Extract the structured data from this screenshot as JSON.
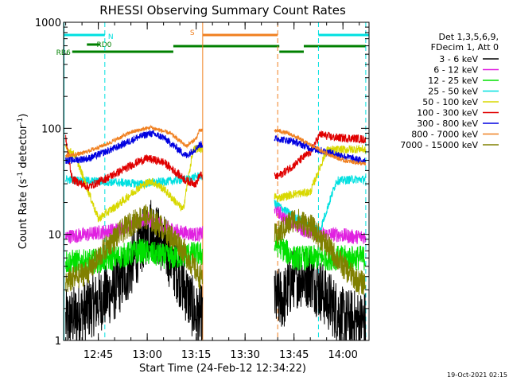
{
  "chart_data": {
    "type": "line",
    "title": "RHESSI Observing Summary Count Rates",
    "xlabel": "Start Time (24-Feb-12 12:34:22)",
    "ylabel": "Count Rate (s⁻¹ detector⁻¹)",
    "ylabel_parts": {
      "base": "Count Rate (s",
      "exp1": "-1",
      "mid": " detector",
      "exp2": "-1",
      "end": ")"
    },
    "x_axis": {
      "unit": "time",
      "range": [
        "12:34:22",
        "14:08:00"
      ],
      "ticks": [
        "12:45",
        "13:00",
        "13:15",
        "13:30",
        "13:45",
        "14:00"
      ]
    },
    "y_axis": {
      "scale": "log",
      "range": [
        1,
        1000
      ],
      "ticks": [
        "1",
        "10",
        "100",
        "1000"
      ]
    },
    "legend": {
      "placement": "right",
      "header": [
        "Det 1,3,5,6,9,",
        "FDecim 1, Att 0"
      ],
      "entries": [
        {
          "label": "3 - 6 keV",
          "color": "#000000"
        },
        {
          "label": "6 - 12 keV",
          "color": "#e020e0"
        },
        {
          "label": "12 - 25 keV",
          "color": "#00e000"
        },
        {
          "label": "25 - 50 keV",
          "color": "#00e0e0"
        },
        {
          "label": "50 - 100 keV",
          "color": "#d8d800"
        },
        {
          "label": "100 - 300 keV",
          "color": "#e00000"
        },
        {
          "label": "300 - 800 keV",
          "color": "#0000e0"
        },
        {
          "label": "800 - 7000 keV",
          "color": "#f08020"
        },
        {
          "label": "7000 - 15000 keV",
          "color": "#808000"
        }
      ]
    },
    "flags": [
      {
        "label": "N",
        "color": "#00e0e0",
        "level": 1
      },
      {
        "label": "S",
        "color": "#f08020",
        "level": 1
      },
      {
        "label": "RD0",
        "color": "#008000",
        "level": 2
      },
      {
        "label": "RB6",
        "color": "#008000",
        "level": 3
      }
    ],
    "gaps": [
      {
        "from": "13:17",
        "to": "13:39",
        "reason": "no data"
      }
    ],
    "series": [
      {
        "band": "3 - 6 keV",
        "color": "#000000",
        "x": [
          "12:35",
          "12:42",
          "12:50",
          "12:55",
          "12:58",
          "13:01",
          "13:05",
          "13:10",
          "13:15",
          "13:16",
          "13:42",
          "13:45",
          "13:50",
          "13:55",
          "14:00",
          "14:05",
          "14:07"
        ],
        "y": [
          1.5,
          2,
          3,
          5,
          8,
          12,
          8,
          4,
          1.7,
          1.7,
          2.5,
          4,
          4,
          2.5,
          1.6,
          1.5,
          1.5
        ],
        "noise": 0.3
      },
      {
        "band": "6 - 12 keV",
        "color": "#e020e0",
        "x": [
          "12:35",
          "12:42",
          "12:50",
          "12:56",
          "13:00",
          "13:05",
          "13:10",
          "13:15",
          "13:16",
          "13:40",
          "13:42",
          "13:48",
          "13:53",
          "13:58",
          "14:03",
          "14:07"
        ],
        "y": [
          9.5,
          10,
          11,
          12.5,
          14,
          12,
          10.5,
          10,
          10,
          17,
          14,
          11,
          10,
          10,
          9.5,
          9.5
        ],
        "noise": 0.07
      },
      {
        "band": "12 - 25 keV",
        "color": "#00e000",
        "x": [
          "12:35",
          "12:42",
          "12:50",
          "12:58",
          "13:02",
          "13:08",
          "13:12",
          "13:15",
          "13:16",
          "13:40",
          "13:45",
          "13:50",
          "13:55",
          "14:00",
          "14:05",
          "14:07"
        ],
        "y": [
          5.5,
          5.5,
          6,
          7,
          6.5,
          6,
          6.5,
          6.5,
          6.5,
          8,
          6,
          6,
          6,
          6,
          6,
          6
        ],
        "noise": 0.12
      },
      {
        "band": "25 - 50 keV",
        "color": "#00e0e0",
        "x": [
          "12:35",
          "12:42",
          "12:50",
          "12:58",
          "13:03",
          "13:08",
          "13:12",
          "13:15",
          "13:16",
          "13:40",
          "13:42",
          "13:48",
          "13:53",
          "13:58",
          "14:03",
          "14:07"
        ],
        "y": [
          33,
          32,
          31,
          30,
          31,
          32,
          33,
          35,
          36,
          19,
          17,
          13,
          11,
          32,
          33,
          33
        ],
        "noise": 0.04
      },
      {
        "band": "50 - 100 keV",
        "color": "#d8d800",
        "x": [
          "12:35",
          "12:38",
          "12:45",
          "12:52",
          "12:57",
          "13:01",
          "13:05",
          "13:11",
          "13:14",
          "13:16",
          "13:40",
          "13:45",
          "13:50",
          "13:55",
          "14:00",
          "14:05",
          "14:07"
        ],
        "y": [
          65,
          55,
          14,
          20,
          27,
          32,
          27,
          17,
          62,
          65,
          22,
          24,
          25,
          62,
          63,
          64,
          63
        ],
        "noise": 0.04
      },
      {
        "band": "100 - 300 keV",
        "color": "#e00000",
        "x": [
          "12:35",
          "12:37",
          "12:42",
          "12:50",
          "12:57",
          "13:00",
          "13:05",
          "13:12",
          "13:15",
          "13:16",
          "13:40",
          "13:45",
          "13:50",
          "13:53",
          "13:57",
          "14:05",
          "14:07"
        ],
        "y": [
          80,
          33,
          28,
          37,
          48,
          52,
          48,
          32,
          30,
          36,
          35,
          45,
          60,
          88,
          82,
          80,
          78
        ],
        "noise": 0.04
      },
      {
        "band": "300 - 800 keV",
        "color": "#0000e0",
        "x": [
          "12:35",
          "12:37",
          "12:42",
          "12:50",
          "12:57",
          "13:01",
          "13:05",
          "13:12",
          "13:15",
          "13:16",
          "13:40",
          "13:45",
          "13:50",
          "13:55",
          "14:00",
          "14:05",
          "14:07"
        ],
        "y": [
          50,
          50,
          52,
          65,
          82,
          90,
          82,
          55,
          65,
          70,
          80,
          75,
          65,
          60,
          55,
          50,
          50
        ],
        "noise": 0.035
      },
      {
        "band": "800 - 7000 keV",
        "color": "#f08020",
        "x": [
          "12:35",
          "12:40",
          "12:48",
          "12:55",
          "13:01",
          "13:07",
          "13:12",
          "13:15",
          "13:16",
          "13:40",
          "13:44",
          "13:50",
          "13:55",
          "14:00",
          "14:05",
          "14:07"
        ],
        "y": [
          55,
          58,
          72,
          92,
          102,
          90,
          68,
          80,
          95,
          95,
          88,
          70,
          58,
          50,
          47,
          46
        ],
        "noise": 0.02
      },
      {
        "band": "7000 - 15000 keV",
        "color": "#808000",
        "x": [
          "12:35",
          "12:42",
          "12:48",
          "12:54",
          "12:59",
          "13:04",
          "13:10",
          "13:15",
          "13:16",
          "13:40",
          "13:45",
          "13:50",
          "13:55",
          "14:00",
          "14:05",
          "14:07"
        ],
        "y": [
          3.5,
          4.5,
          8,
          12,
          15,
          12,
          8,
          4.5,
          4,
          10,
          14,
          12,
          8,
          5,
          3.5,
          3.5
        ],
        "noise": 0.12
      }
    ]
  },
  "footer": {
    "timestamp": "19-Oct-2021 02:15"
  }
}
